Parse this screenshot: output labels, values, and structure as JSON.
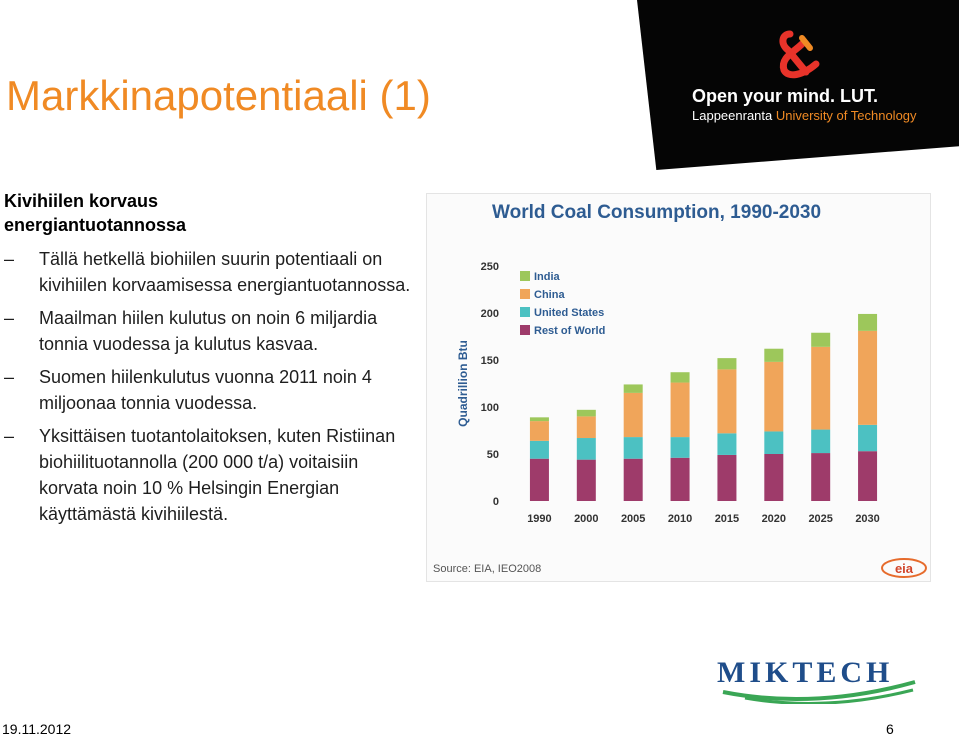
{
  "slide": {
    "title": "Markkinapotentiaali (1)",
    "date": "19.11.2012",
    "page_number": "6"
  },
  "logo": {
    "line1": "Open your mind. LUT.",
    "line2_a": "Lappeenranta ",
    "line2_b": "University of Technology",
    "accent_color": "#f08a24"
  },
  "content": {
    "subheading": "Kivihiilen korvaus energiantuotannossa",
    "bullets": [
      "Tällä hetkellä biohiilen suurin potentiaali on kivihiilen korvaamisessa energiantuotannossa.",
      "Maailman hiilen kulutus on noin 6 miljardia tonnia vuodessa ja kulutus kasvaa.",
      "Suomen hiilenkulutus vuonna 2011 noin 4 miljoonaa tonnia vuodessa.",
      "Yksittäisen tuotantolaitoksen, kuten Ristiinan biohiilituotannolla (200 000 t/a) voitaisiin korvata noin 10 % Helsingin Energian käyttämästä kivihiilestä."
    ]
  },
  "miktech_logo": "MIKTECH",
  "chart_data": {
    "type": "bar",
    "stacked": true,
    "title": "World Coal Consumption, 1990-2030",
    "ylabel": "Quadrillion Btu",
    "xlabel": "",
    "ylim": [
      0,
      250
    ],
    "yticks": [
      0,
      50,
      100,
      150,
      200,
      250
    ],
    "categories": [
      "1990",
      "2000",
      "2005",
      "2010",
      "2015",
      "2020",
      "2025",
      "2030"
    ],
    "series": [
      {
        "name": "Rest of World",
        "color": "#9e3b6a",
        "values": [
          45,
          44,
          45,
          46,
          49,
          50,
          51,
          53
        ]
      },
      {
        "name": "United States",
        "color": "#4cc1c2",
        "values": [
          19,
          23,
          23,
          22,
          23,
          24,
          25,
          28
        ]
      },
      {
        "name": "China",
        "color": "#f0a55a",
        "values": [
          21,
          23,
          47,
          58,
          68,
          74,
          88,
          100
        ]
      },
      {
        "name": "India",
        "color": "#9dc75b",
        "values": [
          4,
          7,
          9,
          11,
          12,
          14,
          15,
          18
        ]
      }
    ],
    "legend_order": [
      "India",
      "China",
      "United States",
      "Rest of World"
    ],
    "legend_position": "top-left",
    "source": "Source: EIA, IEO2008",
    "source_logo": "eia"
  }
}
